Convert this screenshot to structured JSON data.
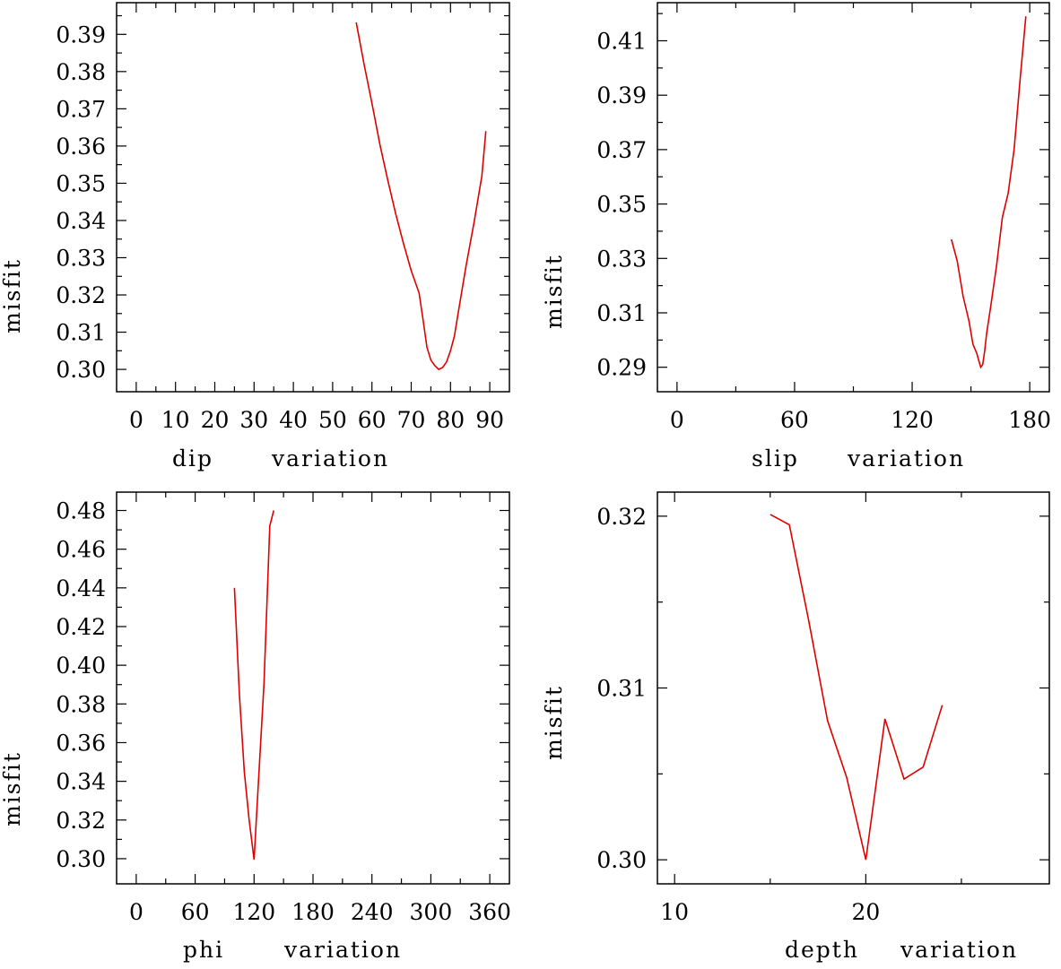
{
  "chart_data": [
    {
      "type": "line",
      "id": "dip",
      "xlabel": "dip",
      "xlabel2": "variation",
      "ylabel": "misfit",
      "xlim": [
        -5,
        95
      ],
      "ylim": [
        0.294,
        0.3985
      ],
      "xticks": [
        0,
        10,
        20,
        30,
        40,
        50,
        60,
        70,
        80,
        90
      ],
      "xticks_minor": [
        5,
        15,
        25,
        35,
        45,
        55,
        65,
        75,
        85
      ],
      "yticks": [
        0.3,
        0.31,
        0.32,
        0.33,
        0.34,
        0.35,
        0.36,
        0.37,
        0.38,
        0.39
      ],
      "ytick_labels": [
        "0.30",
        "0.31",
        "0.32",
        "0.33",
        "0.34",
        "0.35",
        "0.36",
        "0.37",
        "0.38",
        "0.39"
      ],
      "yticks_minor": [
        0.305,
        0.315,
        0.325,
        0.335,
        0.345,
        0.355,
        0.365,
        0.375,
        0.385,
        0.395
      ],
      "series": [
        {
          "name": "dip",
          "color": "#e00000",
          "x": [
            56,
            58,
            60,
            62,
            64,
            66,
            68,
            70,
            72,
            73,
            74,
            75,
            76,
            77,
            78,
            79,
            80,
            81,
            82,
            84,
            86,
            88,
            89
          ],
          "y": [
            0.3932,
            0.382,
            0.3715,
            0.3605,
            0.351,
            0.342,
            0.334,
            0.3265,
            0.3205,
            0.3135,
            0.306,
            0.3025,
            0.301,
            0.3,
            0.3005,
            0.302,
            0.305,
            0.309,
            0.3155,
            0.328,
            0.3395,
            0.352,
            0.364
          ]
        }
      ]
    },
    {
      "type": "line",
      "id": "slip",
      "xlabel": "slip",
      "xlabel2": "variation",
      "ylabel": "misfit",
      "xlim": [
        -10,
        190
      ],
      "ylim": [
        0.281,
        0.424
      ],
      "xticks": [
        0,
        60,
        120,
        180
      ],
      "xticks_minor": [
        30,
        90,
        150
      ],
      "yticks": [
        0.29,
        0.31,
        0.33,
        0.35,
        0.37,
        0.39,
        0.41
      ],
      "ytick_labels": [
        "0.29",
        "0.31",
        "0.33",
        "0.35",
        "0.37",
        "0.39",
        "0.41"
      ],
      "yticks_minor": [
        0.3,
        0.32,
        0.34,
        0.36,
        0.38,
        0.4,
        0.42
      ],
      "series": [
        {
          "name": "slip",
          "color": "#e00000",
          "x": [
            140,
            143,
            146,
            149,
            151,
            153,
            154,
            155,
            156,
            157,
            158,
            160,
            163,
            166,
            169,
            172,
            175,
            178
          ],
          "y": [
            0.337,
            0.329,
            0.316,
            0.307,
            0.2985,
            0.295,
            0.2925,
            0.29,
            0.291,
            0.296,
            0.3025,
            0.312,
            0.327,
            0.345,
            0.354,
            0.37,
            0.395,
            0.419
          ]
        }
      ]
    },
    {
      "type": "line",
      "id": "phi",
      "xlabel": "phi",
      "xlabel2": "variation",
      "ylabel": "misfit",
      "xlim": [
        -20,
        380
      ],
      "ylim": [
        0.287,
        0.4895
      ],
      "xticks": [
        0,
        60,
        120,
        180,
        240,
        300,
        360
      ],
      "xticks_minor": [
        30,
        90,
        150,
        210,
        270,
        330
      ],
      "yticks": [
        0.3,
        0.32,
        0.34,
        0.36,
        0.38,
        0.4,
        0.42,
        0.44,
        0.46,
        0.48
      ],
      "ytick_labels": [
        "0.30",
        "0.32",
        "0.34",
        "0.36",
        "0.38",
        "0.40",
        "0.42",
        "0.44",
        "0.46",
        "0.48"
      ],
      "yticks_minor": [
        0.31,
        0.33,
        0.35,
        0.37,
        0.39,
        0.41,
        0.43,
        0.45,
        0.47
      ],
      "series": [
        {
          "name": "phi",
          "color": "#e00000",
          "x": [
            100,
            105,
            110,
            115,
            120,
            125,
            130,
            136,
            140
          ],
          "y": [
            0.44,
            0.385,
            0.345,
            0.32,
            0.2995,
            0.345,
            0.39,
            0.472,
            0.48
          ]
        }
      ]
    },
    {
      "type": "line",
      "id": "depth",
      "xlabel": "depth",
      "xlabel2": "variation",
      "ylabel": "misfit",
      "xlim": [
        9.1,
        29.6
      ],
      "ylim": [
        0.2986,
        0.3214
      ],
      "xticks": [
        10,
        20
      ],
      "xticks_minor": [
        15,
        25
      ],
      "yticks": [
        0.3,
        0.31,
        0.32
      ],
      "ytick_labels": [
        "0.30",
        "0.31",
        "0.32"
      ],
      "yticks_minor": [
        0.305,
        0.315
      ],
      "series": [
        {
          "name": "depth",
          "color": "#e00000",
          "x": [
            15,
            16,
            17,
            18,
            19,
            20,
            21,
            22,
            23,
            24
          ],
          "y": [
            0.3201,
            0.3195,
            0.314,
            0.3081,
            0.3048,
            0.3,
            0.3082,
            0.3047,
            0.3054,
            0.309
          ]
        }
      ]
    }
  ]
}
